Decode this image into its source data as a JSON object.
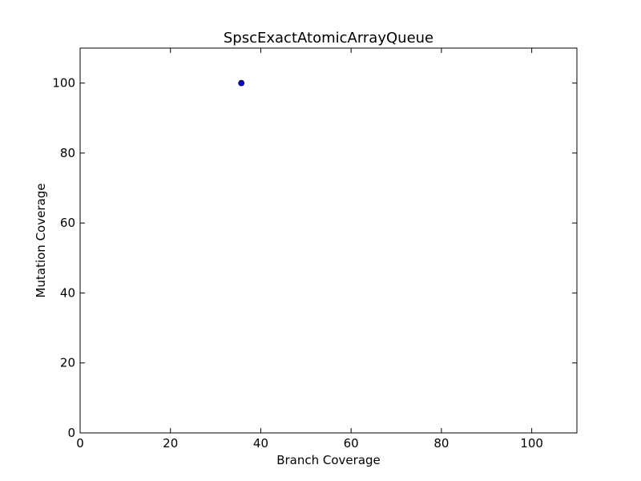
{
  "chart_data": {
    "type": "scatter",
    "title": "SpscExactAtomicArrayQueue",
    "xlabel": "Branch Coverage",
    "ylabel": "Mutation Coverage",
    "xlim": [
      0,
      110
    ],
    "ylim": [
      0,
      110
    ],
    "xticks": [
      0,
      20,
      40,
      60,
      80,
      100
    ],
    "yticks": [
      0,
      20,
      40,
      60,
      80,
      100
    ],
    "grid": false,
    "series": [
      {
        "points": [
          {
            "x": 35.7,
            "y": 100
          }
        ],
        "color": "#0000ff"
      }
    ]
  }
}
